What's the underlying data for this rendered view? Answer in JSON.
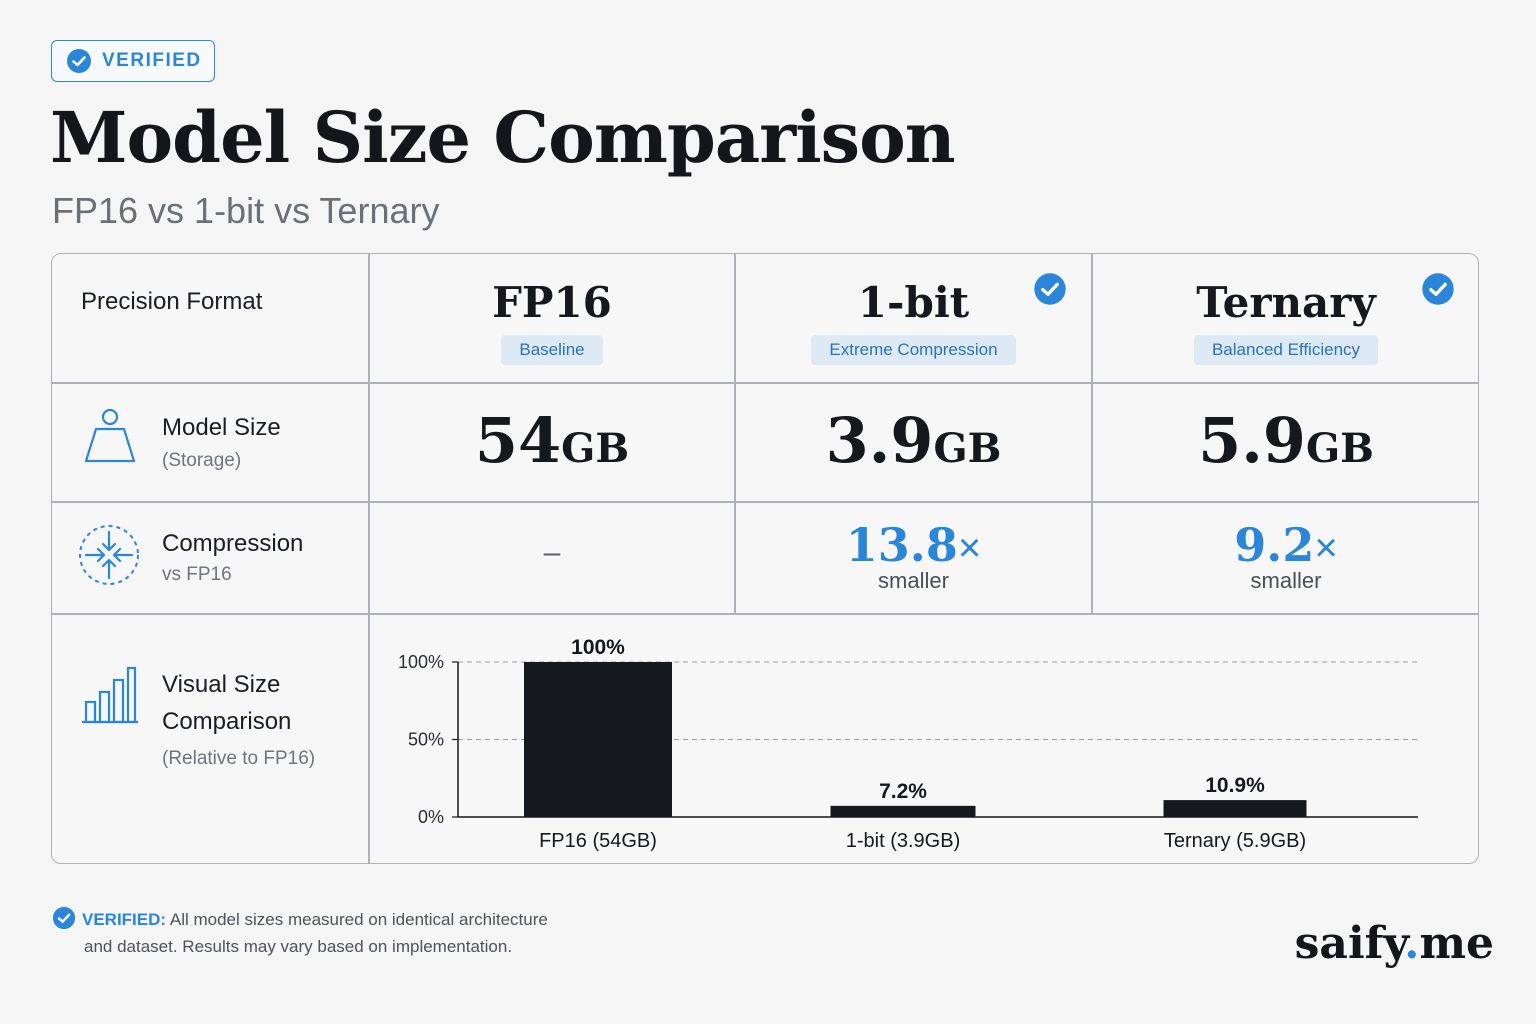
{
  "badge": {
    "label": "VERIFIED",
    "icon": "check-circle-icon"
  },
  "title": "Model Size Comparison",
  "subtitle": "FP16 vs 1-bit vs Ternary",
  "table": {
    "header_label": "Precision Format",
    "columns": [
      {
        "name": "FP16",
        "tag": "Baseline",
        "verified": false
      },
      {
        "name": "1-bit",
        "tag": "Extreme Compression",
        "verified": true
      },
      {
        "name": "Ternary",
        "tag": "Balanced Efficiency",
        "verified": true
      }
    ],
    "rows": {
      "size": {
        "label": "Model Size",
        "sublabel": "(Storage)",
        "icon": "weight-icon",
        "values": [
          {
            "num": "54",
            "unit": "GB"
          },
          {
            "num": "3.9",
            "unit": "GB"
          },
          {
            "num": "5.9",
            "unit": "GB"
          }
        ]
      },
      "compression": {
        "label": "Compression",
        "sublabel": "vs FP16",
        "icon": "compress-arrows-icon",
        "baseline": "–",
        "values": [
          {
            "value": "13.8",
            "suffix": "×",
            "note": "smaller"
          },
          {
            "value": "9.2",
            "suffix": "×",
            "note": "smaller"
          }
        ]
      },
      "visual": {
        "label_line1": "Visual Size",
        "label_line2": "Comparison",
        "sublabel": "(Relative to FP16)",
        "icon": "bar-chart-icon"
      }
    }
  },
  "chart_data": {
    "type": "bar",
    "categories": [
      "FP16 (54GB)",
      "1-bit (3.9GB)",
      "Ternary (5.9GB)"
    ],
    "values": [
      100,
      7.2,
      10.9
    ],
    "value_labels": [
      "100%",
      "7.2%",
      "10.9%"
    ],
    "yticks": [
      "0%",
      "50%",
      "100%"
    ],
    "ytick_values": [
      0,
      50,
      100
    ],
    "ylim": [
      0,
      100
    ],
    "bar_color": "#15181d",
    "grid": "dashed horizontal at 50% and 100%"
  },
  "footnote": {
    "label": "VERIFIED:",
    "line1": "All model sizes measured on identical architecture",
    "line2": "and dataset. Results may vary based on implementation."
  },
  "logo": {
    "part1": "saify",
    "dot": ".",
    "part2": "me"
  },
  "colors": {
    "accent": "#2a86d9",
    "text": "#15181d",
    "muted": "#6b6f76",
    "tag_bg": "#dde9f5"
  }
}
